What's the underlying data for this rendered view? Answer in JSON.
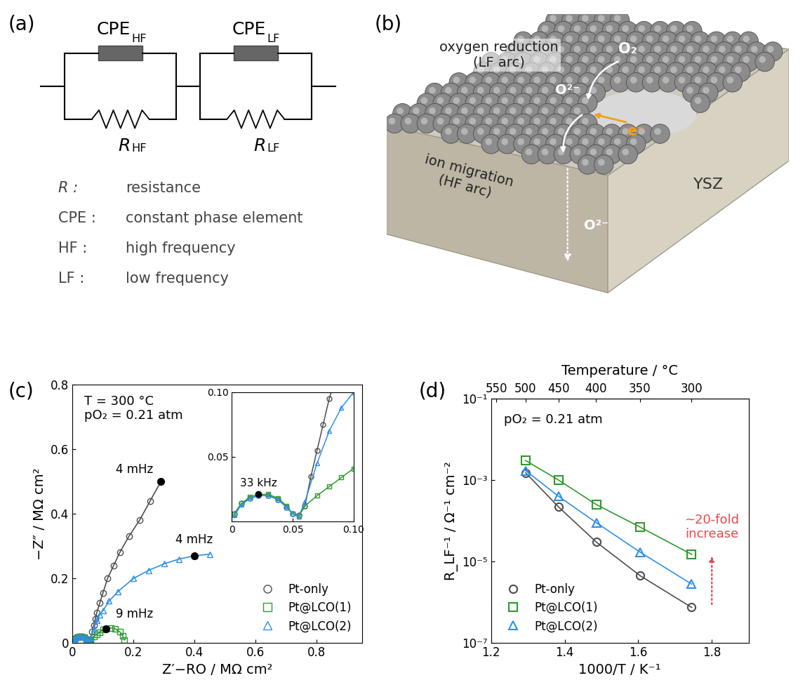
{
  "panel_labels": [
    "(a)",
    "(b)",
    "(c)",
    "(d)"
  ],
  "circuit": {
    "elements": [
      {
        "cpe": {
          "main": "CPE",
          "sub": "HF"
        },
        "r": {
          "main": "R",
          "sub": "HF"
        }
      },
      {
        "cpe": {
          "main": "CPE",
          "sub": "LF"
        },
        "r": {
          "main": "R",
          "sub": "LF"
        }
      }
    ],
    "key": [
      {
        "symbol": "R :",
        "meaning": "resistance"
      },
      {
        "symbol": "CPE :",
        "meaning": "constant phase element"
      },
      {
        "symbol": "HF :",
        "meaning": "high frequency"
      },
      {
        "symbol": "LF :",
        "meaning": "low frequency"
      }
    ]
  },
  "illustration": {
    "surface_process": "oxygen reduction\n(LF arc)",
    "gas": "O₂",
    "ion_surface": "O²⁻",
    "electron": "e⁻",
    "bulk_process": "ion migration\n(HF arc)",
    "ion_bulk": "O²⁻",
    "electrolyte": "YSZ"
  },
  "chart_data": [
    {
      "type": "line",
      "xlabel": "Z′−RO / MΩ cm²",
      "ylabel": "−Z″ / MΩ cm²",
      "xlim": [
        0,
        0.95
      ],
      "ylim": [
        0,
        0.8
      ],
      "xticks": [
        0,
        0.2,
        0.4,
        0.6,
        0.8
      ],
      "yticks": [
        0,
        0.2,
        0.4,
        0.6,
        0.8
      ],
      "conditions": [
        "T = 300 °C",
        "pO₂ = 0.21 atm"
      ],
      "legend": "lower right",
      "grid": false,
      "frequency_marks": [
        {
          "label": "4 mHz",
          "x": 0.29,
          "y": 0.5
        },
        {
          "label": "4 mHz",
          "x": 0.4,
          "y": 0.27
        },
        {
          "label": "9 mHz",
          "x": 0.11,
          "y": 0.045
        }
      ],
      "series": [
        {
          "name": "Pt-only",
          "color": "#4d4d4d",
          "marker": "circle",
          "line_style": "solid",
          "x": [
            0.002,
            0.008,
            0.015,
            0.022,
            0.03,
            0.038,
            0.045,
            0.05,
            0.055,
            0.06,
            0.065,
            0.07,
            0.075,
            0.08,
            0.09,
            0.1,
            0.115,
            0.135,
            0.155,
            0.185,
            0.22,
            0.255,
            0.29
          ],
          "values": [
            0.006,
            0.014,
            0.018,
            0.02,
            0.02,
            0.017,
            0.011,
            0.006,
            0.005,
            0.012,
            0.035,
            0.055,
            0.075,
            0.095,
            0.125,
            0.155,
            0.2,
            0.24,
            0.28,
            0.33,
            0.38,
            0.44,
            0.5
          ]
        },
        {
          "name": "Pt@LCO(1)",
          "color": "#2e9a2e",
          "marker": "square",
          "line_style": "solid",
          "x": [
            0.002,
            0.008,
            0.015,
            0.022,
            0.03,
            0.038,
            0.045,
            0.05,
            0.055,
            0.06,
            0.07,
            0.08,
            0.09,
            0.1,
            0.11,
            0.125,
            0.14,
            0.155,
            0.165,
            0.17
          ],
          "values": [
            0.006,
            0.014,
            0.019,
            0.021,
            0.021,
            0.018,
            0.012,
            0.006,
            0.004,
            0.012,
            0.02,
            0.027,
            0.034,
            0.041,
            0.045,
            0.047,
            0.044,
            0.035,
            0.022,
            0.01
          ]
        },
        {
          "name": "Pt@LCO(2)",
          "color": "#2f8fe8",
          "marker": "triangle",
          "line_style": "solid",
          "x": [
            0.002,
            0.008,
            0.015,
            0.022,
            0.03,
            0.038,
            0.045,
            0.05,
            0.055,
            0.06,
            0.07,
            0.08,
            0.09,
            0.1,
            0.12,
            0.15,
            0.2,
            0.25,
            0.3,
            0.35,
            0.4,
            0.45
          ],
          "values": [
            0.005,
            0.013,
            0.018,
            0.02,
            0.02,
            0.017,
            0.011,
            0.006,
            0.004,
            0.015,
            0.045,
            0.07,
            0.088,
            0.1,
            0.13,
            0.16,
            0.2,
            0.225,
            0.245,
            0.26,
            0.27,
            0.275
          ]
        }
      ],
      "inset": {
        "xlim": [
          0,
          0.1
        ],
        "ylim": [
          0,
          0.1
        ],
        "xticks": [
          0,
          0.05,
          {
            "value": 0.1,
            "label": "0.10"
          }
        ],
        "yticks": [
          0.05,
          {
            "value": 0.1,
            "label": "0.10"
          }
        ],
        "frequency_marks": [
          {
            "label": "33 kHz",
            "x": 0.022,
            "y": 0.021
          }
        ]
      }
    },
    {
      "type": "line",
      "log": "y",
      "xlabel": "1000/T / K⁻¹",
      "ylabel": "R_LF⁻¹ / Ω⁻¹ cm⁻²",
      "x2label": "Temperature / °C",
      "xlim": [
        1.2,
        1.9
      ],
      "ylim": [
        1e-07,
        0.1
      ],
      "xticks": [
        1.2,
        1.4,
        1.6,
        1.8
      ],
      "yticks": [
        {
          "value": 1e-07,
          "label": "10⁻⁷"
        },
        {
          "value": 1e-05,
          "label": "10⁻⁵"
        },
        {
          "value": 0.001,
          "label": "10⁻³"
        },
        {
          "value": 0.1,
          "label": "10⁻¹"
        }
      ],
      "x2ticks": [
        550,
        500,
        450,
        400,
        350,
        300
      ],
      "conditions": [
        "pO₂ = 0.21 atm"
      ],
      "legend": "lower left",
      "grid": false,
      "annotation": {
        "text": "~20-fold\nincrease",
        "x": 1.8,
        "y_from": 8e-07,
        "y_to": 1.5e-05,
        "color": "#e8474a"
      },
      "series": [
        {
          "name": "Pt-only",
          "color": "#4d4d4d",
          "marker": "circle",
          "line_style": "solid",
          "x": [
            1.294,
            1.383,
            1.486,
            1.605,
            1.745
          ],
          "values": [
            0.0015,
            0.00022,
            3e-05,
            4.5e-06,
            7.5e-07
          ]
        },
        {
          "name": "Pt@LCO(1)",
          "color": "#2e9a2e",
          "marker": "square",
          "line_style": "solid",
          "x": [
            1.294,
            1.383,
            1.486,
            1.605,
            1.745
          ],
          "values": [
            0.003,
            0.001,
            0.00025,
            7e-05,
            1.5e-05
          ]
        },
        {
          "name": "Pt@LCO(2)",
          "color": "#2f8fe8",
          "marker": "triangle",
          "line_style": "solid",
          "x": [
            1.294,
            1.383,
            1.486,
            1.605,
            1.745
          ],
          "values": [
            0.0017,
            0.0004,
            9e-05,
            1.7e-05,
            2.8e-06
          ]
        }
      ]
    }
  ]
}
